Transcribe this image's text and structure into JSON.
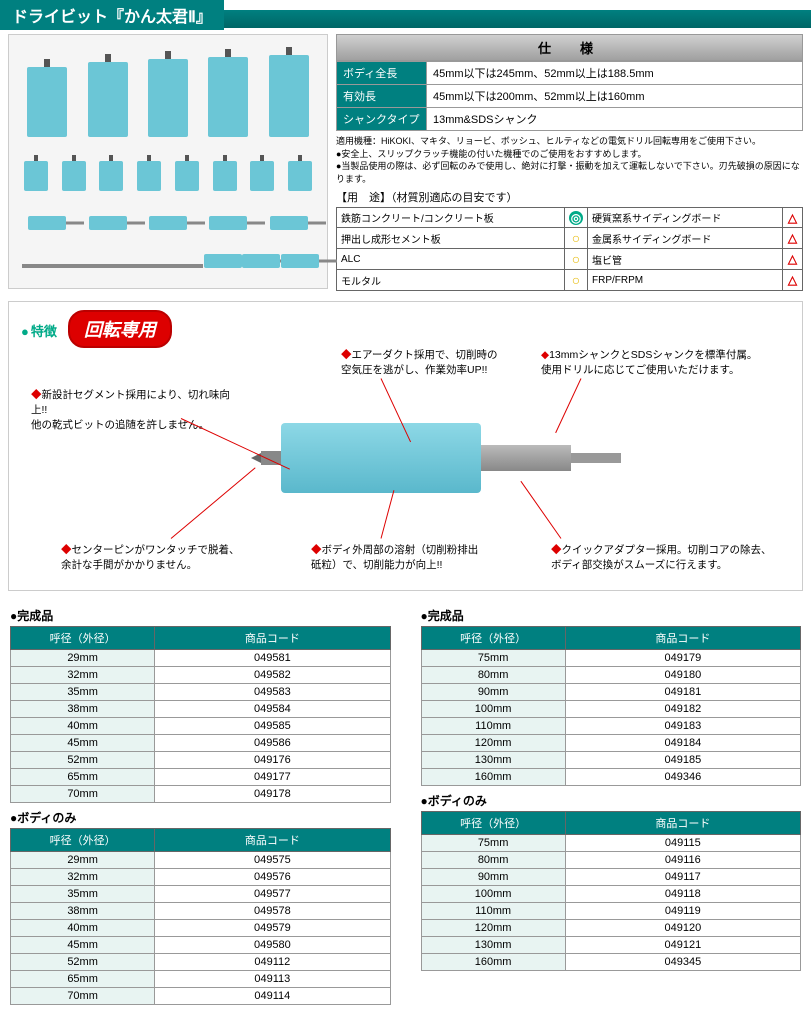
{
  "title": "ドライビット『かん太君Ⅱ』",
  "spec": {
    "header": "仕　様",
    "rows": [
      {
        "label": "ボディ全長",
        "value": "45mm以下は245mm、52mm以上は188.5mm"
      },
      {
        "label": "有効長",
        "value": "45mm以下は200mm、52mm以上は160mm"
      },
      {
        "label": "シャンクタイプ",
        "value": "13mm&SDSシャンク"
      }
    ],
    "notes": [
      "適用機種：HiKOKI、マキタ、リョービ、ボッシュ、ヒルティなどの電気ドリル回転専用をご使用下さい。",
      "●安全上、スリップクラッチ機能の付いた機種でのご使用をおすすめします。",
      "●当製品使用の際は、必ず回転のみで使用し、絶対に打撃・振動を加えて運転しないで下さい。刃先破損の原因になります。"
    ]
  },
  "usage": {
    "header": "【用　途】（材質別適応の目安です）",
    "rows": [
      {
        "m1": "鉄筋コンクリート/コンクリート板",
        "s1": "g",
        "m2": "硬質窯系サイディングボード",
        "s2": "r"
      },
      {
        "m1": "押出し成形セメント板",
        "s1": "y",
        "m2": "金属系サイディングボード",
        "s2": "r"
      },
      {
        "m1": "ALC",
        "s1": "y",
        "m2": "塩ビ管",
        "s2": "r"
      },
      {
        "m1": "モルタル",
        "s1": "y",
        "m2": "FRP/FRPM",
        "s2": "r"
      }
    ]
  },
  "features": {
    "title": "特徴",
    "badge": "回転専用",
    "callouts": [
      "新設計セグメント採用により、切れ味向上!!\n他の乾式ビットの追随を許しません。",
      "エアーダクト採用で、切削時の\n空気圧を逃がし、作業効率UP!!",
      "13mmシャンクとSDSシャンクを標準付属。\n使用ドリルに応じてご使用いただけます。",
      "センターピンがワンタッチで脱着、\n余計な手間がかかりません。",
      "ボディ外周部の溶射（切削粉排出\n砥粒）で、切削能力が向上!!",
      "クイックアダプター採用。切削コアの除去、\nボディ部交換がスムーズに行えます。"
    ]
  },
  "tables": {
    "col_diameter": "呼径（外径）",
    "col_code": "商品コード",
    "complete_title": "完成品",
    "body_title": "ボディのみ",
    "complete_left": [
      {
        "d": "29mm",
        "c": "049581"
      },
      {
        "d": "32mm",
        "c": "049582"
      },
      {
        "d": "35mm",
        "c": "049583"
      },
      {
        "d": "38mm",
        "c": "049584"
      },
      {
        "d": "40mm",
        "c": "049585"
      },
      {
        "d": "45mm",
        "c": "049586"
      },
      {
        "d": "52mm",
        "c": "049176"
      },
      {
        "d": "65mm",
        "c": "049177"
      },
      {
        "d": "70mm",
        "c": "049178"
      }
    ],
    "complete_right": [
      {
        "d": "75mm",
        "c": "049179"
      },
      {
        "d": "80mm",
        "c": "049180"
      },
      {
        "d": "90mm",
        "c": "049181"
      },
      {
        "d": "100mm",
        "c": "049182"
      },
      {
        "d": "110mm",
        "c": "049183"
      },
      {
        "d": "120mm",
        "c": "049184"
      },
      {
        "d": "130mm",
        "c": "049185"
      },
      {
        "d": "160mm",
        "c": "049346"
      }
    ],
    "body_left": [
      {
        "d": "29mm",
        "c": "049575"
      },
      {
        "d": "32mm",
        "c": "049576"
      },
      {
        "d": "35mm",
        "c": "049577"
      },
      {
        "d": "38mm",
        "c": "049578"
      },
      {
        "d": "40mm",
        "c": "049579"
      },
      {
        "d": "45mm",
        "c": "049580"
      },
      {
        "d": "52mm",
        "c": "049112"
      },
      {
        "d": "65mm",
        "c": "049113"
      },
      {
        "d": "70mm",
        "c": "049114"
      }
    ],
    "body_right": [
      {
        "d": "75mm",
        "c": "049115"
      },
      {
        "d": "80mm",
        "c": "049116"
      },
      {
        "d": "90mm",
        "c": "049117"
      },
      {
        "d": "100mm",
        "c": "049118"
      },
      {
        "d": "110mm",
        "c": "049119"
      },
      {
        "d": "120mm",
        "c": "049120"
      },
      {
        "d": "130mm",
        "c": "049121"
      },
      {
        "d": "160mm",
        "c": "049345"
      }
    ]
  }
}
